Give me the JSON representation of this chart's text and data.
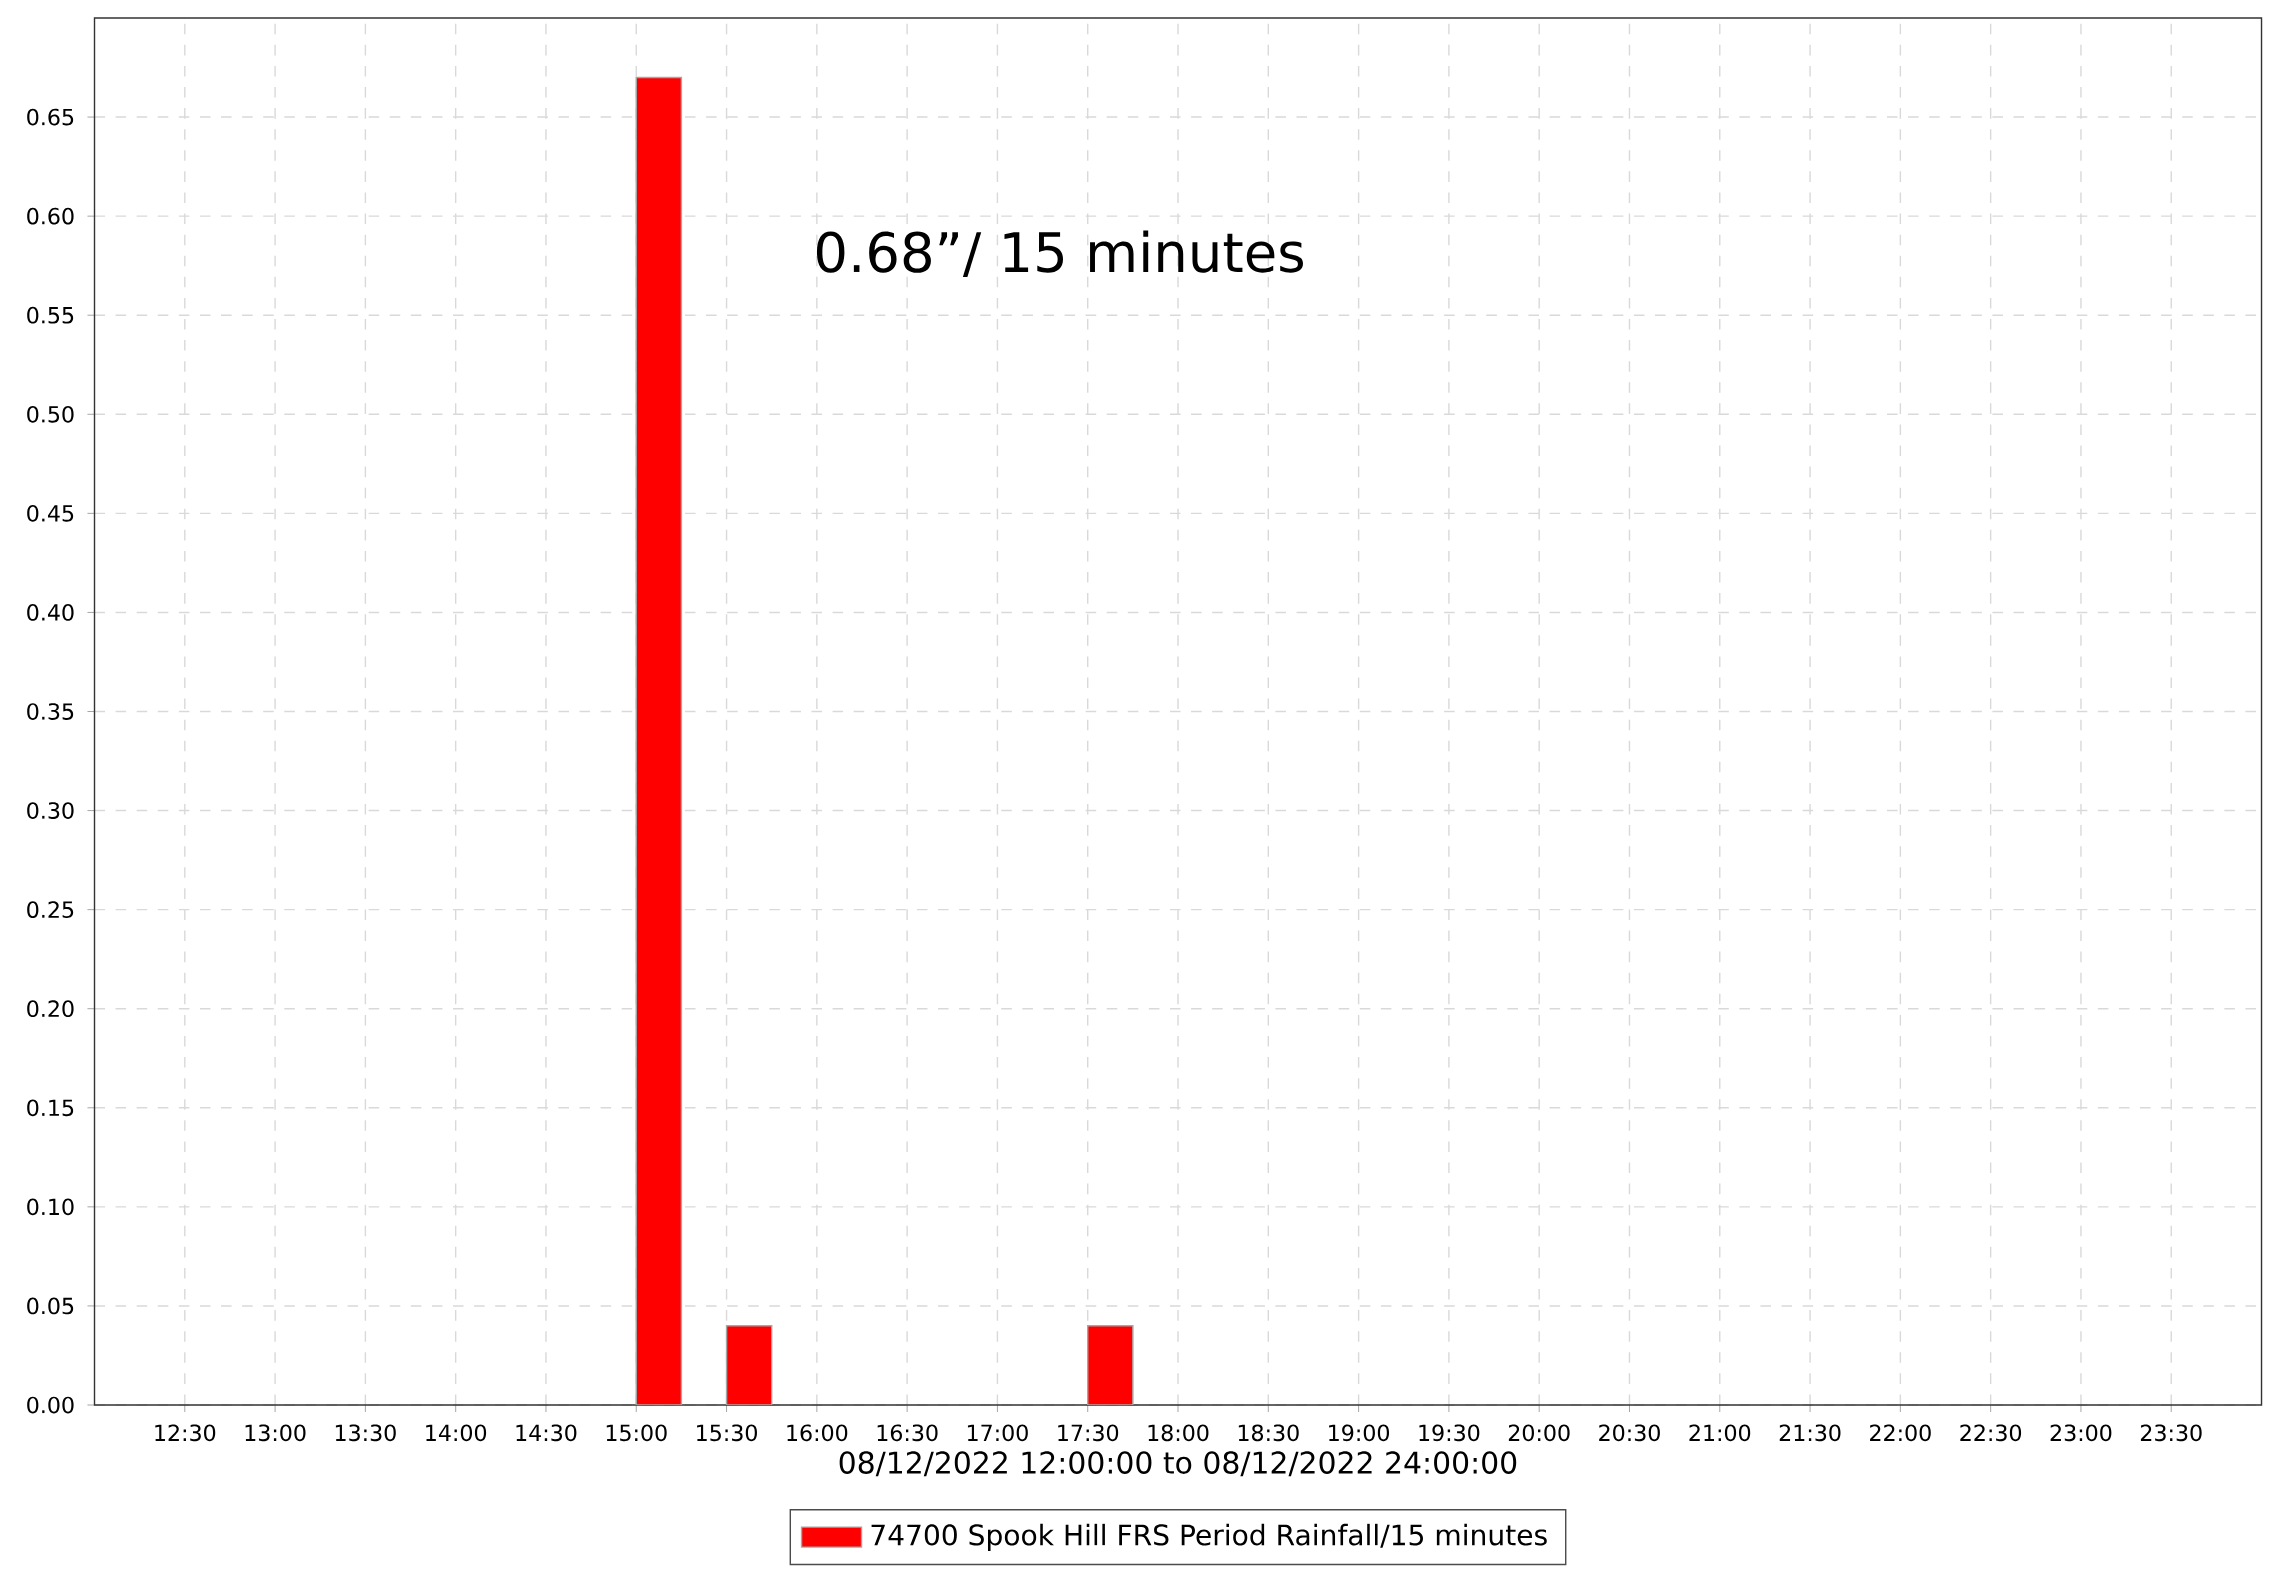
{
  "chart_data": {
    "type": "bar",
    "xlabel": "08/12/2022 12:00:00 to 08/12/2022 24:00:00",
    "annotations": [
      "0.68”/ 15 minutes"
    ],
    "x": [
      15.125,
      15.625,
      17.625
    ],
    "series": [
      {
        "name": "74700 Spook Hill FRS Period Rainfall/15 minutes",
        "color": "#ff0000",
        "values": [
          0.67,
          0.04,
          0.04
        ]
      }
    ],
    "xlim": [
      12,
      24
    ],
    "xticks": [
      {
        "value": 12.5,
        "label": "12:30"
      },
      {
        "value": 13,
        "label": "13:00"
      },
      {
        "value": 13.5,
        "label": "13:30"
      },
      {
        "value": 14,
        "label": "14:00"
      },
      {
        "value": 14.5,
        "label": "14:30"
      },
      {
        "value": 15,
        "label": "15:00"
      },
      {
        "value": 15.5,
        "label": "15:30"
      },
      {
        "value": 16,
        "label": "16:00"
      },
      {
        "value": 16.5,
        "label": "16:30"
      },
      {
        "value": 17,
        "label": "17:00"
      },
      {
        "value": 17.5,
        "label": "17:30"
      },
      {
        "value": 18,
        "label": "18:00"
      },
      {
        "value": 18.5,
        "label": "18:30"
      },
      {
        "value": 19,
        "label": "19:00"
      },
      {
        "value": 19.5,
        "label": "19:30"
      },
      {
        "value": 20,
        "label": "20:00"
      },
      {
        "value": 20.5,
        "label": "20:30"
      },
      {
        "value": 21,
        "label": "21:00"
      },
      {
        "value": 21.5,
        "label": "21:30"
      },
      {
        "value": 22,
        "label": "22:00"
      },
      {
        "value": 22.5,
        "label": "22:30"
      },
      {
        "value": 23,
        "label": "23:00"
      },
      {
        "value": 23.5,
        "label": "23:30"
      }
    ],
    "ylim": [
      0,
      0.7
    ],
    "yticks": [
      {
        "value": 0,
        "label": "0.00"
      },
      {
        "value": 0.05,
        "label": "0.05"
      },
      {
        "value": 0.1,
        "label": "0.10"
      },
      {
        "value": 0.15,
        "label": "0.15"
      },
      {
        "value": 0.2,
        "label": "0.20"
      },
      {
        "value": 0.25,
        "label": "0.25"
      },
      {
        "value": 0.3,
        "label": "0.30"
      },
      {
        "value": 0.35,
        "label": "0.35"
      },
      {
        "value": 0.4,
        "label": "0.40"
      },
      {
        "value": 0.45,
        "label": "0.45"
      },
      {
        "value": 0.5,
        "label": "0.50"
      },
      {
        "value": 0.55,
        "label": "0.55"
      },
      {
        "value": 0.6,
        "label": "0.60"
      },
      {
        "value": 0.65,
        "label": "0.65"
      }
    ],
    "grid": true,
    "legend": "bottom"
  }
}
